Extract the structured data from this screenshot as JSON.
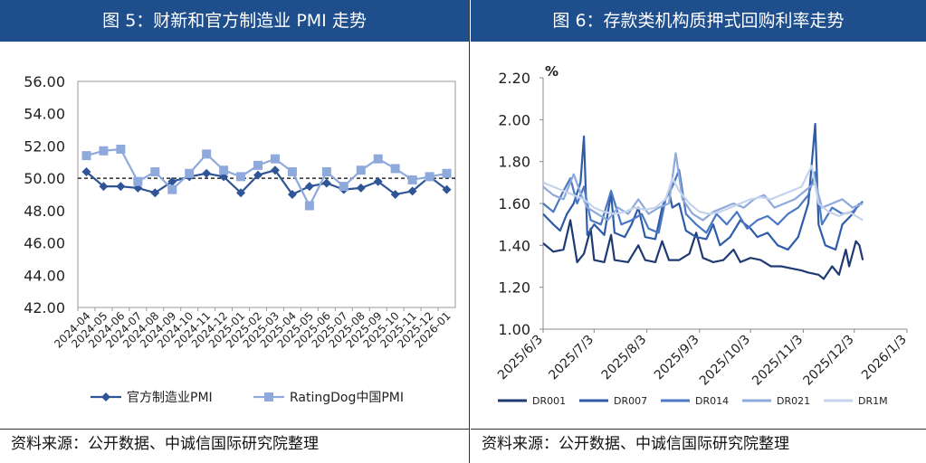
{
  "left_panel": {
    "title": "图 5：财新和官方制造业 PMI 走势",
    "source": "资料来源：公开数据、中诚信国际研究院整理"
  },
  "right_panel": {
    "title": "图 6：存款类机构质押式回购利率走势",
    "source": "资料来源：公开数据、中诚信国际研究院整理"
  },
  "chart_data": [
    {
      "type": "line",
      "title": "",
      "xlabel": "",
      "ylabel": "",
      "ylim": [
        42,
        56
      ],
      "yticks": [
        "42.00",
        "44.00",
        "46.00",
        "48.00",
        "50.00",
        "52.00",
        "54.00",
        "56.00"
      ],
      "reference_line": 50,
      "legend_position": "bottom",
      "categories": [
        "2024-04",
        "2024-05",
        "2024-06",
        "2024-07",
        "2024-08",
        "2024-09",
        "2024-10",
        "2024-11",
        "2024-12",
        "2025-01",
        "2025-02",
        "2025-03",
        "2025-04",
        "2025-05",
        "2025-06",
        "2025-07",
        "2025-08",
        "2025-09",
        "2025-10",
        "2025-11",
        "2025-12",
        "2026-01"
      ],
      "series": [
        {
          "name": "官方制造业PMI",
          "color": "#2f5597",
          "marker": "diamond",
          "values": [
            50.4,
            49.5,
            49.5,
            49.4,
            49.1,
            49.8,
            50.1,
            50.3,
            50.1,
            49.1,
            50.2,
            50.5,
            49.0,
            49.5,
            49.7,
            49.3,
            49.4,
            49.8,
            49.0,
            49.2,
            50.1,
            49.3
          ]
        },
        {
          "name": "RatingDog中国PMI",
          "color": "#8ea9db",
          "marker": "square",
          "values": [
            51.4,
            51.7,
            51.8,
            49.8,
            50.4,
            49.3,
            50.3,
            51.5,
            50.5,
            50.1,
            50.8,
            51.2,
            50.4,
            48.3,
            50.4,
            49.5,
            50.5,
            51.2,
            50.6,
            49.9,
            50.1,
            50.3
          ]
        }
      ]
    },
    {
      "type": "line",
      "title": "",
      "xlabel": "",
      "ylabel": "%",
      "ylim": [
        1.0,
        2.2
      ],
      "yticks": [
        "1.00",
        "1.20",
        "1.40",
        "1.60",
        "1.80",
        "2.00",
        "2.20"
      ],
      "xticks": [
        "2025/6/3",
        "2025/7/3",
        "2025/8/3",
        "2025/9/3",
        "2025/10/3",
        "2025/11/3",
        "2025/12/3",
        "2026/1/3"
      ],
      "x_start": "2025/6/3",
      "legend_position": "bottom",
      "series": [
        {
          "name": "DR001",
          "color": "#1f3a73",
          "points": [
            [
              0,
              1.41
            ],
            [
              6,
              1.37
            ],
            [
              12,
              1.38
            ],
            [
              16,
              1.52
            ],
            [
              20,
              1.32
            ],
            [
              24,
              1.36
            ],
            [
              28,
              1.48
            ],
            [
              30,
              1.33
            ],
            [
              36,
              1.32
            ],
            [
              40,
              1.45
            ],
            [
              42,
              1.33
            ],
            [
              50,
              1.32
            ],
            [
              56,
              1.4
            ],
            [
              60,
              1.33
            ],
            [
              66,
              1.32
            ],
            [
              70,
              1.42
            ],
            [
              74,
              1.33
            ],
            [
              80,
              1.33
            ],
            [
              86,
              1.36
            ],
            [
              90,
              1.46
            ],
            [
              94,
              1.34
            ],
            [
              100,
              1.32
            ],
            [
              106,
              1.33
            ],
            [
              112,
              1.38
            ],
            [
              116,
              1.32
            ],
            [
              122,
              1.34
            ],
            [
              128,
              1.33
            ],
            [
              134,
              1.3
            ],
            [
              140,
              1.3
            ],
            [
              146,
              1.29
            ],
            [
              152,
              1.28
            ],
            [
              156,
              1.27
            ],
            [
              162,
              1.26
            ],
            [
              165,
              1.24
            ],
            [
              170,
              1.3
            ],
            [
              174,
              1.26
            ],
            [
              178,
              1.38
            ],
            [
              180,
              1.3
            ],
            [
              184,
              1.42
            ],
            [
              186,
              1.4
            ],
            [
              188,
              1.33
            ]
          ]
        },
        {
          "name": "DR007",
          "color": "#2e5ca8",
          "points": [
            [
              0,
              1.55
            ],
            [
              6,
              1.5
            ],
            [
              10,
              1.47
            ],
            [
              14,
              1.55
            ],
            [
              18,
              1.6
            ],
            [
              22,
              1.7
            ],
            [
              24,
              1.92
            ],
            [
              26,
              1.45
            ],
            [
              30,
              1.5
            ],
            [
              36,
              1.45
            ],
            [
              40,
              1.65
            ],
            [
              42,
              1.46
            ],
            [
              48,
              1.44
            ],
            [
              52,
              1.5
            ],
            [
              56,
              1.58
            ],
            [
              60,
              1.44
            ],
            [
              66,
              1.43
            ],
            [
              70,
              1.58
            ],
            [
              74,
              1.66
            ],
            [
              76,
              1.58
            ],
            [
              80,
              1.6
            ],
            [
              84,
              1.47
            ],
            [
              90,
              1.44
            ],
            [
              96,
              1.43
            ],
            [
              100,
              1.5
            ],
            [
              104,
              1.4
            ],
            [
              110,
              1.44
            ],
            [
              116,
              1.52
            ],
            [
              122,
              1.48
            ],
            [
              126,
              1.44
            ],
            [
              132,
              1.46
            ],
            [
              138,
              1.4
            ],
            [
              144,
              1.38
            ],
            [
              150,
              1.44
            ],
            [
              156,
              1.6
            ],
            [
              160,
              1.98
            ],
            [
              162,
              1.5
            ],
            [
              166,
              1.4
            ],
            [
              172,
              1.38
            ],
            [
              176,
              1.5
            ],
            [
              182,
              1.55
            ],
            [
              186,
              1.6
            ]
          ]
        },
        {
          "name": "DR014",
          "color": "#4a78c2",
          "points": [
            [
              0,
              1.6
            ],
            [
              6,
              1.56
            ],
            [
              12,
              1.66
            ],
            [
              16,
              1.72
            ],
            [
              20,
              1.6
            ],
            [
              24,
              1.68
            ],
            [
              28,
              1.52
            ],
            [
              34,
              1.5
            ],
            [
              40,
              1.66
            ],
            [
              46,
              1.5
            ],
            [
              52,
              1.52
            ],
            [
              58,
              1.55
            ],
            [
              62,
              1.48
            ],
            [
              68,
              1.46
            ],
            [
              72,
              1.62
            ],
            [
              76,
              1.68
            ],
            [
              80,
              1.76
            ],
            [
              84,
              1.55
            ],
            [
              90,
              1.5
            ],
            [
              96,
              1.46
            ],
            [
              102,
              1.55
            ],
            [
              108,
              1.5
            ],
            [
              114,
              1.56
            ],
            [
              120,
              1.48
            ],
            [
              126,
              1.52
            ],
            [
              132,
              1.54
            ],
            [
              138,
              1.5
            ],
            [
              144,
              1.55
            ],
            [
              150,
              1.58
            ],
            [
              156,
              1.64
            ],
            [
              160,
              1.75
            ],
            [
              164,
              1.5
            ],
            [
              170,
              1.58
            ],
            [
              176,
              1.55
            ],
            [
              182,
              1.56
            ],
            [
              188,
              1.61
            ]
          ]
        },
        {
          "name": "DR021",
          "color": "#8ea9db",
          "points": [
            [
              0,
              1.68
            ],
            [
              6,
              1.64
            ],
            [
              12,
              1.62
            ],
            [
              18,
              1.74
            ],
            [
              22,
              1.65
            ],
            [
              26,
              1.58
            ],
            [
              32,
              1.55
            ],
            [
              38,
              1.52
            ],
            [
              44,
              1.58
            ],
            [
              50,
              1.55
            ],
            [
              56,
              1.62
            ],
            [
              62,
              1.55
            ],
            [
              68,
              1.58
            ],
            [
              74,
              1.6
            ],
            [
              78,
              1.84
            ],
            [
              82,
              1.62
            ],
            [
              88,
              1.55
            ],
            [
              94,
              1.52
            ],
            [
              100,
              1.56
            ],
            [
              106,
              1.58
            ],
            [
              112,
              1.6
            ],
            [
              118,
              1.58
            ],
            [
              124,
              1.62
            ],
            [
              130,
              1.64
            ],
            [
              136,
              1.58
            ],
            [
              142,
              1.6
            ],
            [
              148,
              1.62
            ],
            [
              154,
              1.66
            ],
            [
              160,
              1.7
            ],
            [
              164,
              1.58
            ],
            [
              170,
              1.6
            ],
            [
              176,
              1.62
            ],
            [
              182,
              1.58
            ],
            [
              188,
              1.6
            ]
          ]
        },
        {
          "name": "DR1M",
          "color": "#c5d3ec",
          "points": [
            [
              0,
              1.7
            ],
            [
              6,
              1.68
            ],
            [
              12,
              1.66
            ],
            [
              18,
              1.64
            ],
            [
              24,
              1.62
            ],
            [
              30,
              1.58
            ],
            [
              36,
              1.56
            ],
            [
              42,
              1.55
            ],
            [
              48,
              1.56
            ],
            [
              54,
              1.58
            ],
            [
              60,
              1.57
            ],
            [
              66,
              1.58
            ],
            [
              72,
              1.62
            ],
            [
              76,
              1.72
            ],
            [
              80,
              1.66
            ],
            [
              86,
              1.6
            ],
            [
              92,
              1.56
            ],
            [
              98,
              1.55
            ],
            [
              104,
              1.56
            ],
            [
              110,
              1.58
            ],
            [
              116,
              1.6
            ],
            [
              122,
              1.62
            ],
            [
              128,
              1.63
            ],
            [
              134,
              1.62
            ],
            [
              140,
              1.64
            ],
            [
              146,
              1.66
            ],
            [
              152,
              1.68
            ],
            [
              158,
              1.78
            ],
            [
              162,
              1.6
            ],
            [
              168,
              1.56
            ],
            [
              174,
              1.54
            ],
            [
              180,
              1.56
            ],
            [
              188,
              1.52
            ]
          ]
        }
      ]
    }
  ]
}
